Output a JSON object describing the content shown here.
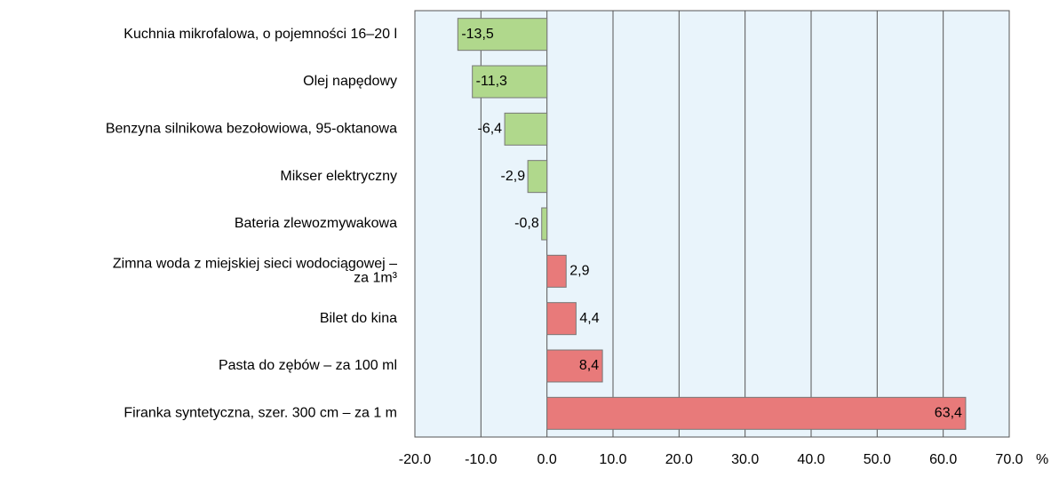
{
  "chart_data": {
    "type": "hbar",
    "categories": [
      "Kuchnia mikrofalowa, o pojemności 16–20 l",
      "Olej napędowy",
      "Benzyna silnikowa bezołowiowa, 95-oktanowa",
      "Mikser elektryczny",
      "Bateria zlewozmywakowa",
      [
        "Zimna woda z miejskiej sieci wodociągowej –",
        "za 1m³"
      ],
      "Bilet do kina",
      "Pasta do zębów – za 100 ml",
      "Firanka syntetyczna, szer. 300 cm – za 1 m"
    ],
    "values": [
      -13.5,
      -11.3,
      -6.4,
      -2.9,
      -0.8,
      2.9,
      4.4,
      8.4,
      63.4
    ],
    "value_labels": [
      "-13,5",
      "-11,3",
      "-6,4",
      "-2,9",
      "-0,8",
      "2,9",
      "4,4",
      "8,4",
      "63,4"
    ],
    "colors": [
      "#b0d88c",
      "#b0d88c",
      "#b0d88c",
      "#b0d88c",
      "#b0d88c",
      "#e87a7a",
      "#e87a7a",
      "#e87a7a",
      "#e87a7a"
    ],
    "xlim": [
      -20,
      70
    ],
    "xticks": [
      {
        "value": -20,
        "label": "-20.0"
      },
      {
        "value": -10,
        "label": "-10.0"
      },
      {
        "value": 0,
        "label": "0.0"
      },
      {
        "value": 10,
        "label": "10.0"
      },
      {
        "value": 20,
        "label": "20.0"
      },
      {
        "value": 30,
        "label": "30.0"
      },
      {
        "value": 40,
        "label": "40.0"
      },
      {
        "value": 50,
        "label": "50.0"
      },
      {
        "value": 60,
        "label": "60.0"
      },
      {
        "value": 70,
        "label": "70.0"
      }
    ],
    "x_axis_label": "%",
    "grid": true
  }
}
